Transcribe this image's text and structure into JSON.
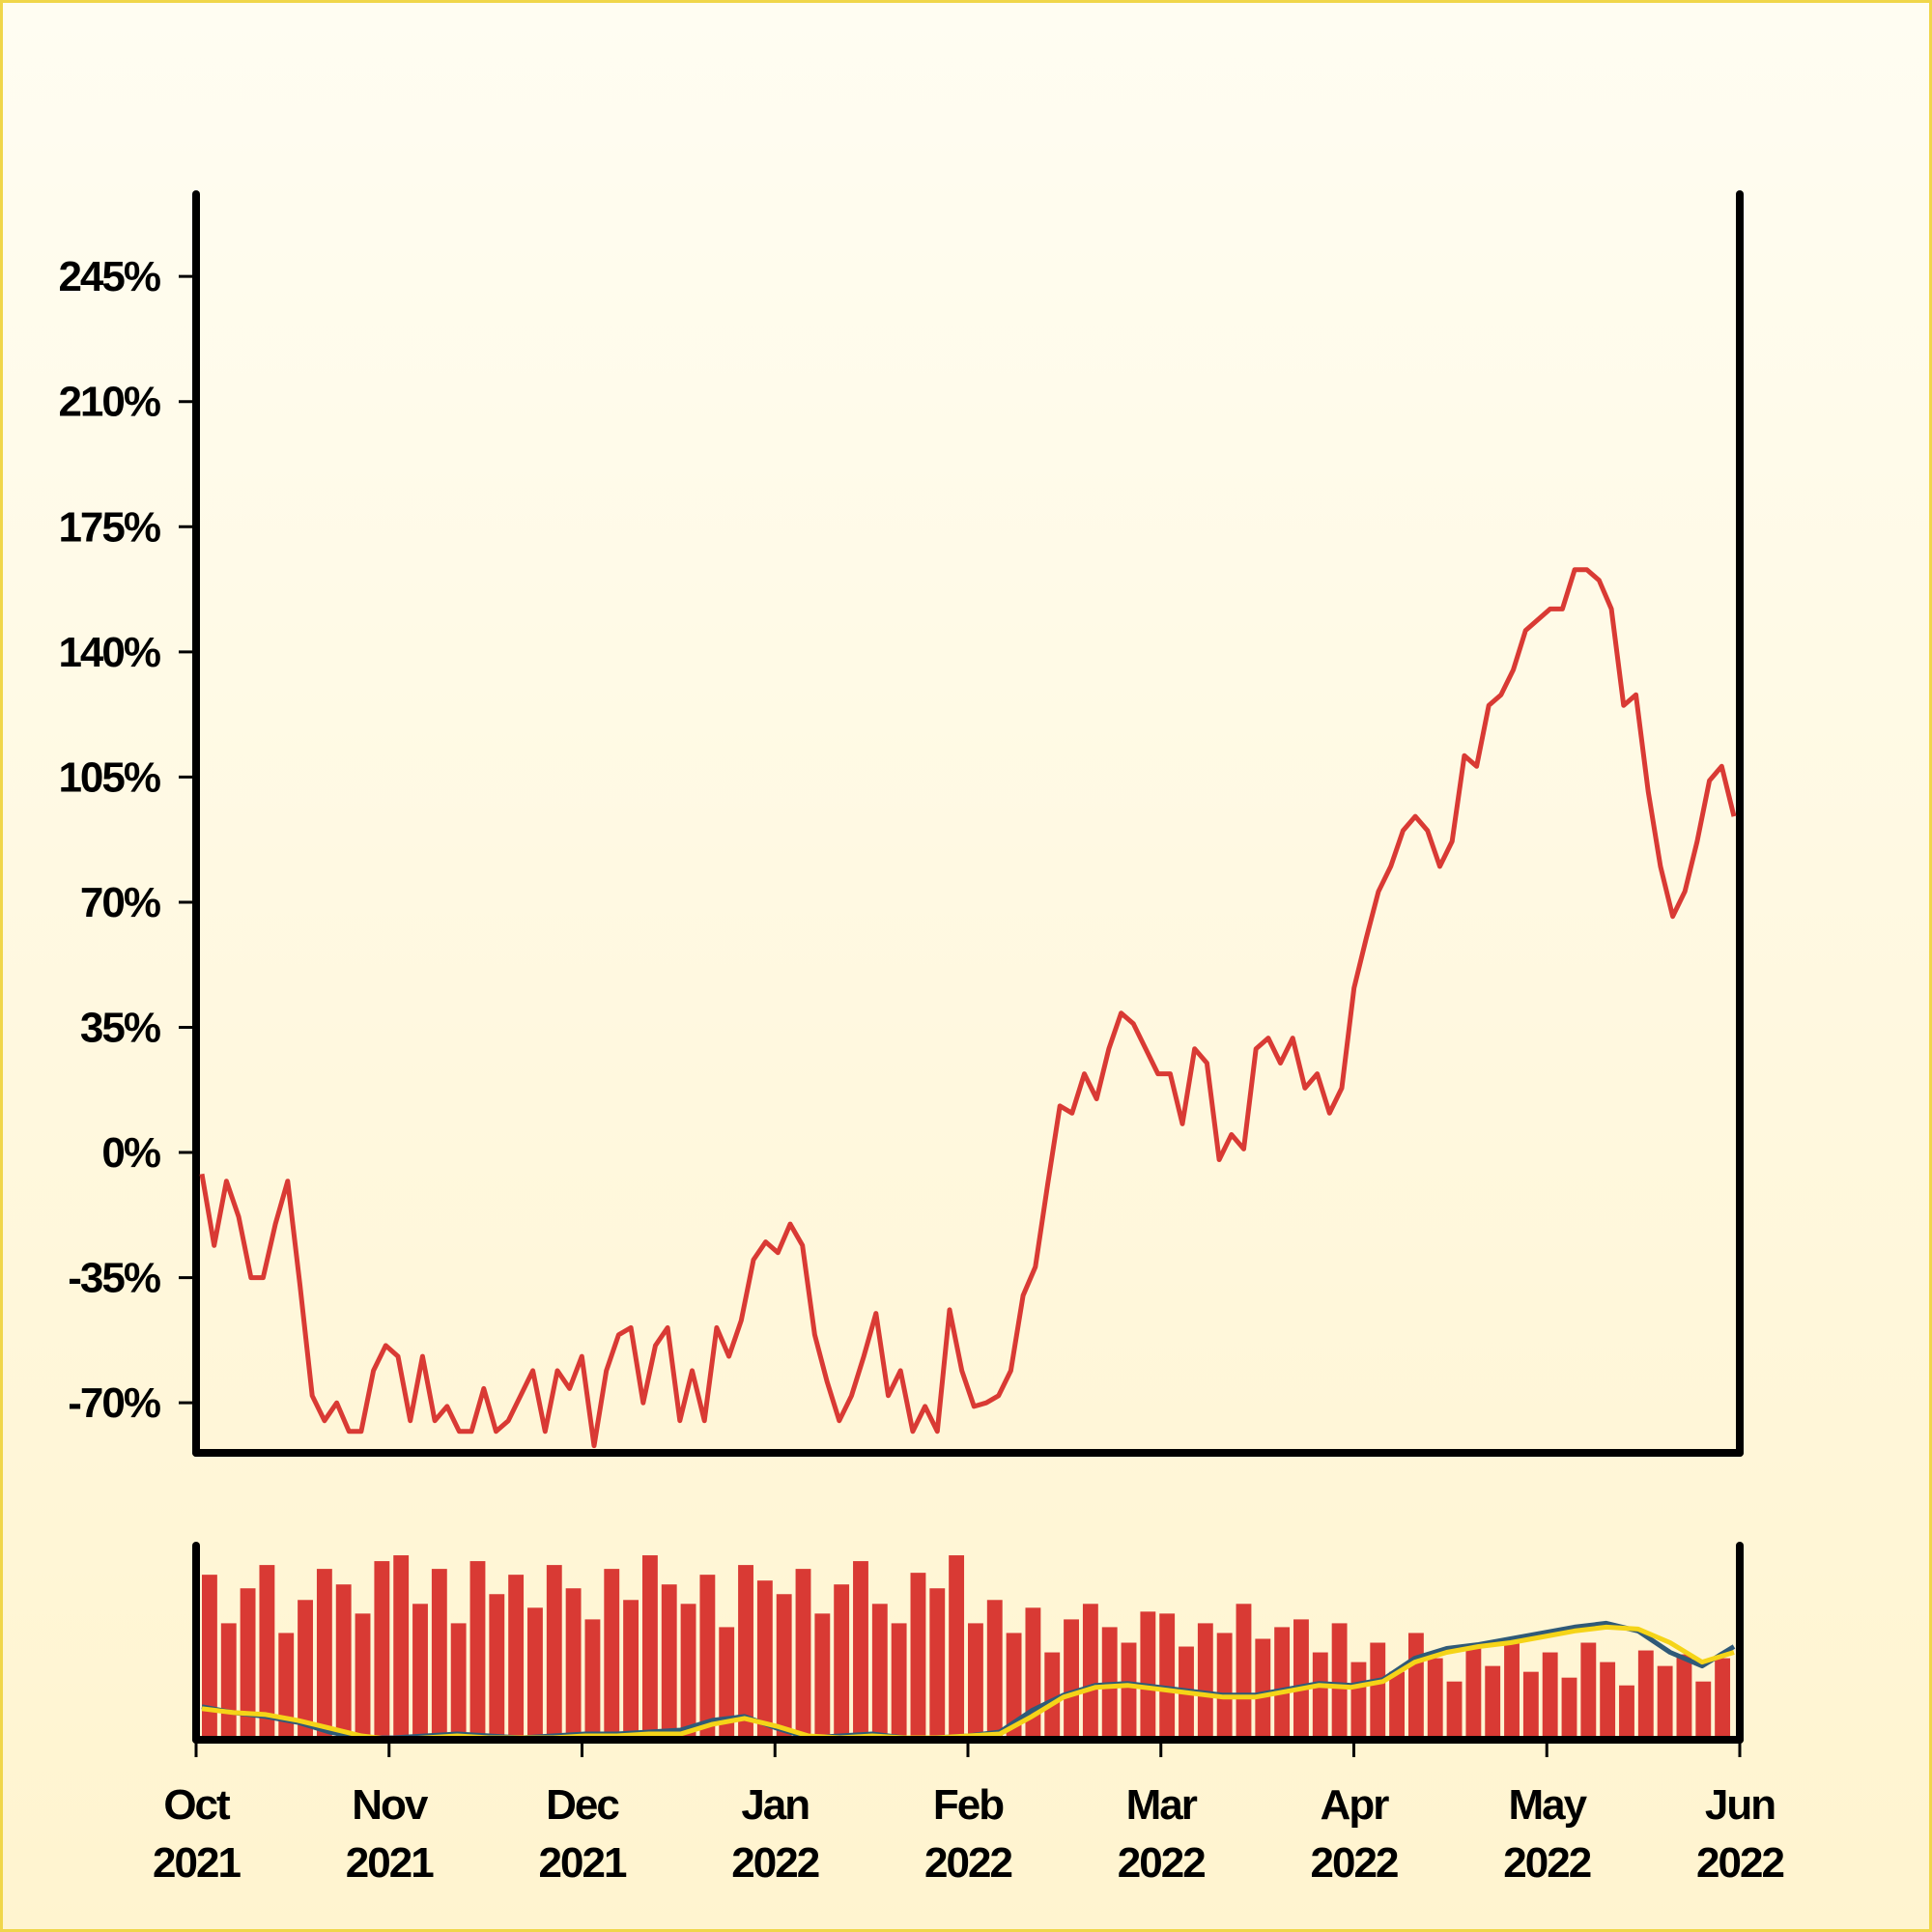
{
  "chart_data": [
    {
      "type": "line",
      "xlim": [
        "2021-10",
        "2022-06"
      ],
      "xticks": [
        {
          "value": "2021-10",
          "label": "Oct 2021"
        },
        {
          "value": "2021-11",
          "label": "Nov 2021"
        },
        {
          "value": "2021-12",
          "label": "Dec 2021"
        },
        {
          "value": "2022-01",
          "label": "Jan 2022"
        },
        {
          "value": "2022-02",
          "label": "Feb 2022"
        },
        {
          "value": "2022-03",
          "label": "Mar 2022"
        },
        {
          "value": "2022-04",
          "label": "Apr 2022"
        },
        {
          "value": "2022-05",
          "label": "May 2022"
        },
        {
          "value": "2022-06",
          "label": "Jun 2022"
        }
      ],
      "ylim": [
        -84,
        268
      ],
      "yticks": [
        {
          "value": -70,
          "label": "-70%"
        },
        {
          "value": -35,
          "label": "-35%"
        },
        {
          "value": 0,
          "label": "0%"
        },
        {
          "value": 35,
          "label": "35%"
        },
        {
          "value": 70,
          "label": "70%"
        },
        {
          "value": 105,
          "label": "105%"
        },
        {
          "value": 140,
          "label": "140%"
        },
        {
          "value": 175,
          "label": "175%"
        },
        {
          "value": 210,
          "label": "210%"
        },
        {
          "value": 245,
          "label": "245%"
        }
      ],
      "series": [
        {
          "color": "#d93a34",
          "values": [
            -6,
            -26,
            -8,
            -18,
            -35,
            -35,
            -20,
            -8,
            -37,
            -68,
            -75,
            -70,
            -78,
            -78,
            -61,
            -54,
            -57,
            -75,
            -57,
            -75,
            -71,
            -78,
            -78,
            -66,
            -78,
            -75,
            -68,
            -61,
            -78,
            -61,
            -66,
            -57,
            -82,
            -61,
            -51,
            -49,
            -70,
            -54,
            -49,
            -75,
            -61,
            -75,
            -49,
            -57,
            -47,
            -30,
            -25,
            -28,
            -20,
            -26,
            -51,
            -64,
            -75,
            -68,
            -57,
            -45,
            -68,
            -61,
            -78,
            -71,
            -78,
            -44,
            -61,
            -71,
            -70,
            -68,
            -61,
            -40,
            -32,
            -9,
            13,
            11,
            22,
            15,
            29,
            39,
            36,
            29,
            22,
            22,
            8,
            29,
            25,
            -2,
            5,
            1,
            29,
            32,
            25,
            32,
            18,
            22,
            11,
            18,
            46,
            60,
            73,
            80,
            90,
            94,
            90,
            80,
            87,
            111,
            108,
            125,
            128,
            135,
            146,
            149,
            152,
            152,
            163,
            163,
            160,
            152,
            125,
            128,
            101,
            80,
            66,
            73,
            87,
            104,
            108,
            94
          ]
        }
      ]
    },
    {
      "type": "bar",
      "xlim": [
        "2021-10",
        "2022-06"
      ],
      "ylim": [
        0,
        100
      ],
      "color": "#d93a34",
      "values": [
        85,
        60,
        78,
        90,
        55,
        72,
        88,
        80,
        65,
        92,
        95,
        70,
        88,
        60,
        92,
        75,
        85,
        68,
        90,
        78,
        62,
        88,
        72,
        95,
        80,
        70,
        85,
        58,
        90,
        82,
        75,
        88,
        65,
        80,
        92,
        70,
        60,
        86,
        78,
        95,
        60,
        72,
        55,
        68,
        45,
        62,
        70,
        58,
        50,
        66,
        65,
        48,
        60,
        55,
        70,
        52,
        58,
        62,
        45,
        60,
        40,
        50,
        35,
        55,
        42,
        30,
        48,
        38,
        52,
        35,
        45,
        32,
        50,
        40,
        28,
        46,
        38,
        44,
        30,
        42
      ],
      "series": [
        {
          "color": "#2f5a78",
          "values": [
            17,
            14,
            12,
            9,
            4,
            1,
            1,
            2,
            3,
            2,
            1,
            2,
            3,
            3,
            4,
            5,
            10,
            12,
            6,
            1,
            2,
            3,
            1,
            1,
            2,
            4,
            15,
            23,
            28,
            29,
            27,
            25,
            23,
            23,
            26,
            29,
            28,
            31,
            42,
            47,
            49,
            52,
            55,
            58,
            60,
            56,
            45,
            38,
            48
          ]
        },
        {
          "color": "#f5d418",
          "values": [
            16,
            14,
            13,
            10,
            6,
            2,
            0,
            1,
            2,
            1,
            1,
            1,
            2,
            2,
            3,
            3,
            8,
            11,
            7,
            2,
            1,
            2,
            1,
            1,
            2,
            3,
            12,
            22,
            27,
            28,
            26,
            24,
            22,
            22,
            25,
            28,
            27,
            30,
            40,
            45,
            48,
            50,
            53,
            56,
            58,
            57,
            50,
            40,
            45
          ]
        }
      ]
    }
  ]
}
